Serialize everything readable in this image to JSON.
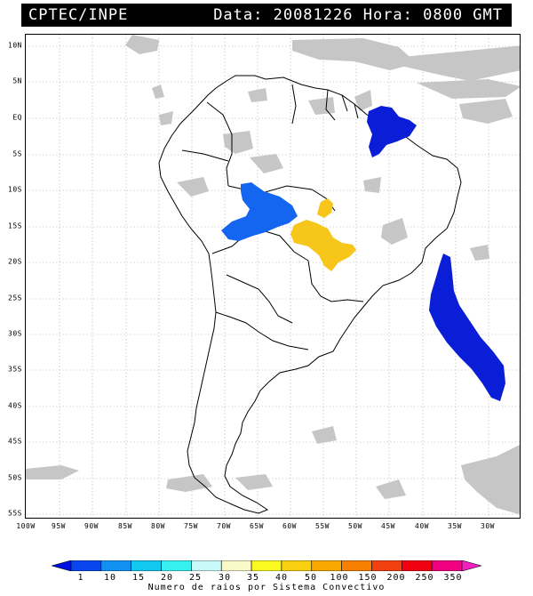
{
  "header": {
    "source": "CPTEC/INPE",
    "datetime": "Data: 20081226 Hora: 0800 GMT"
  },
  "map": {
    "lat_labels": [
      "10N",
      "5N",
      "EQ",
      "5S",
      "10S",
      "15S",
      "20S",
      "25S",
      "30S",
      "35S",
      "40S",
      "45S",
      "50S",
      "55S"
    ],
    "lon_labels": [
      "100W",
      "95W",
      "90W",
      "85W",
      "80W",
      "75W",
      "70W",
      "65W",
      "60W",
      "55W",
      "50W",
      "45W",
      "40W",
      "35W",
      "30W"
    ],
    "colors": {
      "land_outline": "#000000",
      "cloud": "#c4c4c4",
      "cluster_blue_dark": "#0a1ed8",
      "cluster_blue": "#1466f0",
      "cluster_yellow": "#f6c61a",
      "cluster_yellow_light": "#f8e620"
    }
  },
  "colorbar": {
    "ticks": [
      "1",
      "10",
      "15",
      "20",
      "25",
      "30",
      "35",
      "40",
      "50",
      "100",
      "150",
      "200",
      "250",
      "350"
    ],
    "colors": [
      "#0010e0",
      "#0a46f0",
      "#1090f0",
      "#10c8f0",
      "#38f0f0",
      "#c8fafa",
      "#fafac8",
      "#fafa20",
      "#f8d010",
      "#f8a800",
      "#f88000",
      "#f04010",
      "#f00010",
      "#f00080",
      "#f020c0"
    ],
    "title": "Numero de raios por Sistema Convectivo"
  }
}
